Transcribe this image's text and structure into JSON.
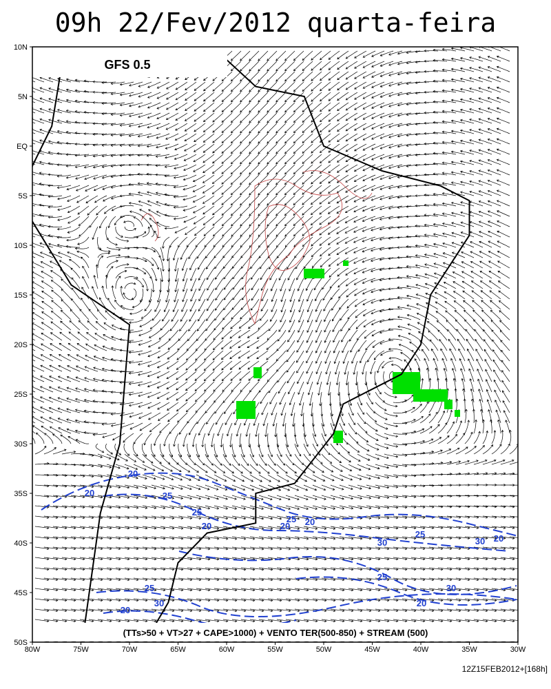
{
  "header": {
    "title": "09h 22/Fev/2012 quarta-feira",
    "model": "GFS 0.5"
  },
  "axes": {
    "lat_labels": [
      "10N",
      "5N",
      "EQ",
      "5S",
      "10S",
      "15S",
      "20S",
      "25S",
      "30S",
      "35S",
      "40S",
      "45S",
      "50S"
    ],
    "lon_labels": [
      "80W",
      "75W",
      "70W",
      "65W",
      "60W",
      "55W",
      "50W",
      "45W",
      "40W",
      "35W",
      "30W"
    ]
  },
  "contour_labels": [
    "20",
    "20",
    "25",
    "25",
    "20",
    "20",
    "25",
    "20",
    "25",
    "30",
    "30",
    "20",
    "25",
    "25",
    "30",
    "30",
    "20",
    "20"
  ],
  "legend": "(TTs>50 + VT>27 + CAPE>1000) + VENTO TER(500-850) + STREAM (500)",
  "footer": "12Z15FEB2012+[168h]"
}
